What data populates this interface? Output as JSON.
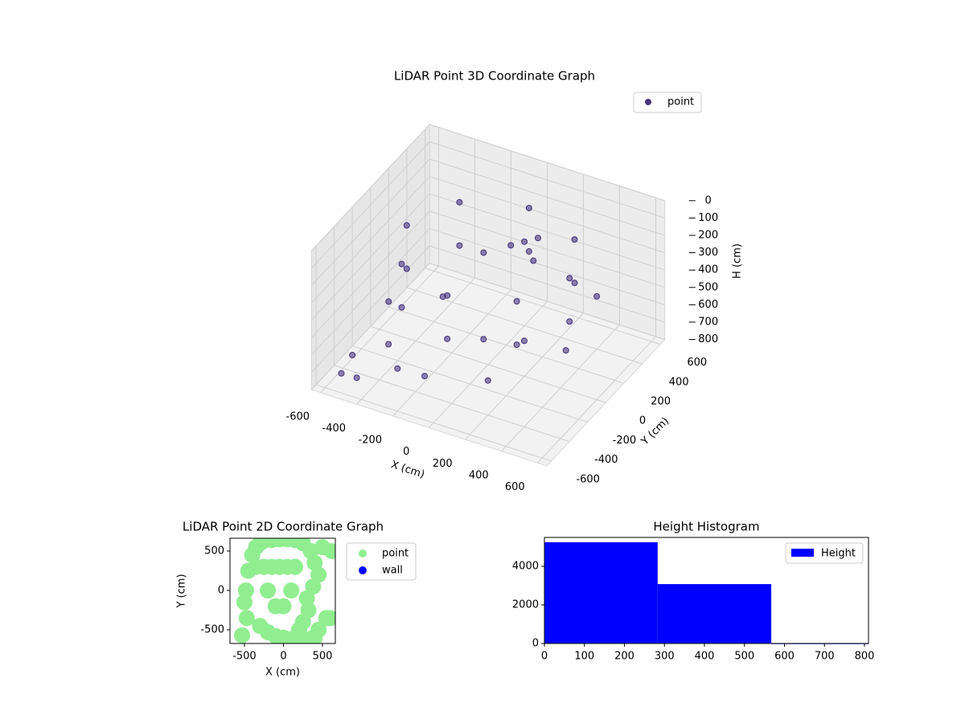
{
  "chart_data": [
    {
      "type": "scatter3d",
      "title": "LiDAR Point 3D Coordinate Graph",
      "x_label": "X (cm)",
      "y_label": "Y (cm)",
      "z_label": "H (cm)",
      "xlim": [
        -650,
        650
      ],
      "ylim": [
        -650,
        650
      ],
      "zlim": [
        0,
        800
      ],
      "z_inverted": true,
      "xticks": [
        -600,
        -400,
        -200,
        0,
        200,
        400,
        600
      ],
      "yticks": [
        -600,
        -400,
        -200,
        0,
        200,
        400,
        600
      ],
      "zticks": [
        0,
        100,
        200,
        300,
        400,
        500,
        600,
        700,
        800
      ],
      "grid": true,
      "legend": "upper right",
      "series": [
        {
          "name": "point",
          "color": "#46337e",
          "x": [
            450,
            318,
            0,
            -318,
            -450,
            -318,
            0,
            318,
            450,
            318,
            0,
            -318,
            -450,
            -318,
            0,
            318,
            100,
            150,
            50,
            200,
            -50,
            -400,
            -300,
            -100,
            200,
            -500,
            500,
            480,
            -600,
            -560,
            -450,
            300,
            100,
            -200
          ],
          "y": [
            0,
            318,
            450,
            318,
            0,
            -318,
            -450,
            -318,
            0,
            318,
            450,
            318,
            0,
            -318,
            -450,
            -318,
            200,
            250,
            150,
            100,
            50,
            -300,
            -400,
            -500,
            -400,
            -100,
            200,
            -100,
            -300,
            -500,
            -550,
            -200,
            -250,
            -100
          ],
          "z": [
            150,
            150,
            150,
            150,
            150,
            150,
            150,
            150,
            400,
            400,
            400,
            400,
            400,
            400,
            400,
            400,
            170,
            160,
            180,
            190,
            200,
            650,
            700,
            620,
            600,
            550,
            350,
            500,
            780,
            760,
            720,
            450,
            480,
            420
          ]
        }
      ]
    },
    {
      "type": "scatter",
      "title": "LiDAR Point 2D Coordinate Graph",
      "x_label": "X (cm)",
      "y_label": "Y (cm)",
      "xlim": [
        -685,
        665
      ],
      "ylim": [
        -673,
        663
      ],
      "xticks": [
        -500,
        0,
        500
      ],
      "yticks": [
        -500,
        0,
        500
      ],
      "legend": "outside right",
      "series": [
        {
          "name": "point",
          "color": "#90ee90",
          "x": [
            -530,
            -450,
            -480,
            -500,
            -470,
            -400,
            -350,
            -300,
            -250,
            -150,
            -50,
            50,
            150,
            250,
            350,
            400,
            450,
            380,
            300,
            320,
            250,
            200,
            380,
            450,
            550,
            620,
            400,
            300,
            200,
            100,
            0,
            -100,
            -200,
            -300,
            -350,
            -250,
            -150,
            -50,
            50,
            150,
            100,
            0,
            -100,
            -200,
            500,
            600
          ],
          "y": [
            -570,
            250,
            0,
            -150,
            -350,
            450,
            550,
            600,
            630,
            640,
            650,
            650,
            640,
            600,
            500,
            350,
            200,
            50,
            -100,
            -250,
            -400,
            -500,
            -600,
            -500,
            -350,
            500,
            -600,
            -630,
            -630,
            -620,
            -600,
            -580,
            -530,
            -450,
            300,
            300,
            300,
            300,
            300,
            300,
            0,
            -200,
            -200,
            0,
            550,
            -350
          ]
        },
        {
          "name": "wall",
          "color": "#0000ff",
          "x": [],
          "y": []
        }
      ]
    },
    {
      "type": "histogram",
      "title": "Height Histogram",
      "bins": [
        0,
        283,
        567,
        810
      ],
      "counts": [
        5250,
        3080,
        10
      ],
      "series_name": "Height",
      "color": "#0000ff",
      "xlim": [
        0,
        810
      ],
      "ylim": [
        0,
        5500
      ],
      "xticks": [
        0,
        100,
        200,
        300,
        400,
        500,
        600,
        700,
        800
      ],
      "yticks": [
        0,
        2000,
        4000
      ],
      "legend": "upper right"
    }
  ]
}
